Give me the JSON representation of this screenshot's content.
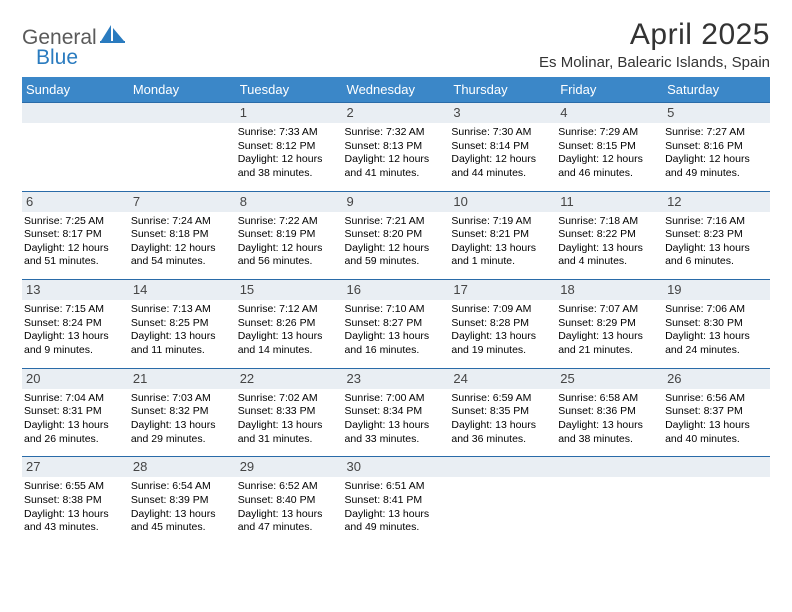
{
  "brand": {
    "text_general": "General",
    "text_blue": "Blue",
    "logo_fill": "#2a7bbf",
    "general_color": "#5a5a5a"
  },
  "title": "April 2025",
  "location": "Es Molinar, Balearic Islands, Spain",
  "colors": {
    "header_bg": "#3b87c8",
    "header_text": "#ffffff",
    "daynum_bg": "#e9eef3",
    "daynum_text": "#454545",
    "week_border": "#2a6ba8",
    "body_text": "#000000"
  },
  "day_names": [
    "Sunday",
    "Monday",
    "Tuesday",
    "Wednesday",
    "Thursday",
    "Friday",
    "Saturday"
  ],
  "weeks": [
    [
      null,
      null,
      {
        "n": "1",
        "sr": "7:33 AM",
        "ss": "8:12 PM",
        "dl": "12 hours and 38 minutes."
      },
      {
        "n": "2",
        "sr": "7:32 AM",
        "ss": "8:13 PM",
        "dl": "12 hours and 41 minutes."
      },
      {
        "n": "3",
        "sr": "7:30 AM",
        "ss": "8:14 PM",
        "dl": "12 hours and 44 minutes."
      },
      {
        "n": "4",
        "sr": "7:29 AM",
        "ss": "8:15 PM",
        "dl": "12 hours and 46 minutes."
      },
      {
        "n": "5",
        "sr": "7:27 AM",
        "ss": "8:16 PM",
        "dl": "12 hours and 49 minutes."
      }
    ],
    [
      {
        "n": "6",
        "sr": "7:25 AM",
        "ss": "8:17 PM",
        "dl": "12 hours and 51 minutes."
      },
      {
        "n": "7",
        "sr": "7:24 AM",
        "ss": "8:18 PM",
        "dl": "12 hours and 54 minutes."
      },
      {
        "n": "8",
        "sr": "7:22 AM",
        "ss": "8:19 PM",
        "dl": "12 hours and 56 minutes."
      },
      {
        "n": "9",
        "sr": "7:21 AM",
        "ss": "8:20 PM",
        "dl": "12 hours and 59 minutes."
      },
      {
        "n": "10",
        "sr": "7:19 AM",
        "ss": "8:21 PM",
        "dl": "13 hours and 1 minute."
      },
      {
        "n": "11",
        "sr": "7:18 AM",
        "ss": "8:22 PM",
        "dl": "13 hours and 4 minutes."
      },
      {
        "n": "12",
        "sr": "7:16 AM",
        "ss": "8:23 PM",
        "dl": "13 hours and 6 minutes."
      }
    ],
    [
      {
        "n": "13",
        "sr": "7:15 AM",
        "ss": "8:24 PM",
        "dl": "13 hours and 9 minutes."
      },
      {
        "n": "14",
        "sr": "7:13 AM",
        "ss": "8:25 PM",
        "dl": "13 hours and 11 minutes."
      },
      {
        "n": "15",
        "sr": "7:12 AM",
        "ss": "8:26 PM",
        "dl": "13 hours and 14 minutes."
      },
      {
        "n": "16",
        "sr": "7:10 AM",
        "ss": "8:27 PM",
        "dl": "13 hours and 16 minutes."
      },
      {
        "n": "17",
        "sr": "7:09 AM",
        "ss": "8:28 PM",
        "dl": "13 hours and 19 minutes."
      },
      {
        "n": "18",
        "sr": "7:07 AM",
        "ss": "8:29 PM",
        "dl": "13 hours and 21 minutes."
      },
      {
        "n": "19",
        "sr": "7:06 AM",
        "ss": "8:30 PM",
        "dl": "13 hours and 24 minutes."
      }
    ],
    [
      {
        "n": "20",
        "sr": "7:04 AM",
        "ss": "8:31 PM",
        "dl": "13 hours and 26 minutes."
      },
      {
        "n": "21",
        "sr": "7:03 AM",
        "ss": "8:32 PM",
        "dl": "13 hours and 29 minutes."
      },
      {
        "n": "22",
        "sr": "7:02 AM",
        "ss": "8:33 PM",
        "dl": "13 hours and 31 minutes."
      },
      {
        "n": "23",
        "sr": "7:00 AM",
        "ss": "8:34 PM",
        "dl": "13 hours and 33 minutes."
      },
      {
        "n": "24",
        "sr": "6:59 AM",
        "ss": "8:35 PM",
        "dl": "13 hours and 36 minutes."
      },
      {
        "n": "25",
        "sr": "6:58 AM",
        "ss": "8:36 PM",
        "dl": "13 hours and 38 minutes."
      },
      {
        "n": "26",
        "sr": "6:56 AM",
        "ss": "8:37 PM",
        "dl": "13 hours and 40 minutes."
      }
    ],
    [
      {
        "n": "27",
        "sr": "6:55 AM",
        "ss": "8:38 PM",
        "dl": "13 hours and 43 minutes."
      },
      {
        "n": "28",
        "sr": "6:54 AM",
        "ss": "8:39 PM",
        "dl": "13 hours and 45 minutes."
      },
      {
        "n": "29",
        "sr": "6:52 AM",
        "ss": "8:40 PM",
        "dl": "13 hours and 47 minutes."
      },
      {
        "n": "30",
        "sr": "6:51 AM",
        "ss": "8:41 PM",
        "dl": "13 hours and 49 minutes."
      },
      null,
      null,
      null
    ]
  ],
  "labels": {
    "sunrise": "Sunrise: ",
    "sunset": "Sunset: ",
    "daylight": "Daylight: "
  }
}
